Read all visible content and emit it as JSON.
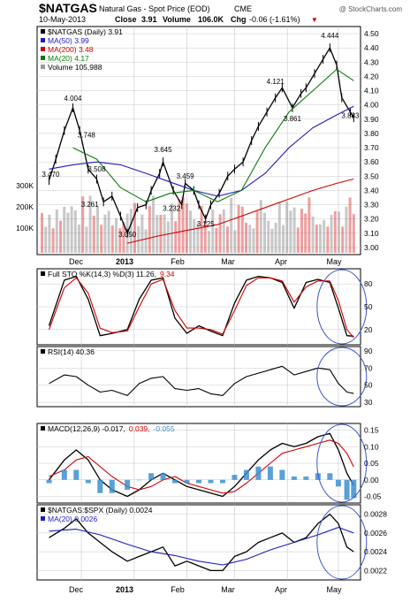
{
  "header": {
    "symbol": "$NATGAS",
    "name": "Natural Gas - Spot Price (EOD)",
    "exchange": "CME",
    "date": "10-May-2013",
    "close_label": "Close",
    "close": "3.91",
    "volume_label": "Volume",
    "volume": "106.0K",
    "chg_label": "Chg",
    "chg": "-0.06 (-1.61%)",
    "chg_arrow": "▼",
    "copyright": "@ StockCharts.com"
  },
  "colors": {
    "price": "#000000",
    "ma50": "#1c1cb8",
    "ma200": "#d00000",
    "ma20": "#0a7a0a",
    "volume": "#9a9a9a",
    "volume_red": "#e05050",
    "sto_k": "#000000",
    "sto_d": "#d00000",
    "rsi_fill": "#4a7f4a",
    "macd_hist": "#3b8fd0",
    "circle": "#3a56c8",
    "grid": "#c8c8c8",
    "chg_red": "#c00000"
  },
  "x_labels": [
    "Dec",
    "2013",
    "Feb",
    "Mar",
    "Apr",
    "May"
  ],
  "chart_data": [
    {
      "type": "line",
      "panel": "price",
      "title": "$NATGAS (Daily) 3.91",
      "legend": [
        {
          "label": "$NATGAS (Daily)",
          "value": "3.91",
          "color": "#000000"
        },
        {
          "label": "MA(50)",
          "value": "3.99",
          "color": "#1c1cb8"
        },
        {
          "label": "MA(200)",
          "value": "3.48",
          "color": "#d00000"
        },
        {
          "label": "MA(20)",
          "value": "4.17",
          "color": "#0a7a0a"
        },
        {
          "label": "Volume",
          "value": "105,988",
          "color": "#9a9a9a"
        }
      ],
      "ylim": [
        2.95,
        4.55
      ],
      "y_ticks": [
        "4.50",
        "4.40",
        "4.30",
        "4.20",
        "4.10",
        "4.00",
        "3.90",
        "3.80",
        "3.70",
        "3.60",
        "3.50",
        "3.40",
        "3.30",
        "3.20",
        "3.10",
        "3.00"
      ],
      "volume_ticks": [
        "300K",
        "200K",
        "100K"
      ],
      "annotations": [
        {
          "text": "4.004",
          "x": "2012-11-26",
          "y": 4.004
        },
        {
          "text": "3.748",
          "x": "2012-12-04",
          "y": 3.748
        },
        {
          "text": "3.470",
          "x": "2012-11-13",
          "y": 3.47
        },
        {
          "text": "3.508",
          "x": "2012-12-10",
          "y": 3.508
        },
        {
          "text": "3.261",
          "x": "2012-12-06",
          "y": 3.261
        },
        {
          "text": "3.050",
          "x": "2012-12-28",
          "y": 3.05
        },
        {
          "text": "3.645",
          "x": "2013-01-18",
          "y": 3.645
        },
        {
          "text": "3.459",
          "x": "2013-01-31",
          "y": 3.459
        },
        {
          "text": "3.232",
          "x": "2013-01-23",
          "y": 3.232
        },
        {
          "text": "3.125",
          "x": "2013-02-12",
          "y": 3.125
        },
        {
          "text": "4.121",
          "x": "2013-03-25",
          "y": 4.121
        },
        {
          "text": "3.861",
          "x": "2013-04-04",
          "y": 3.861
        },
        {
          "text": "4.444",
          "x": "2013-04-26",
          "y": 4.444
        },
        {
          "text": "3.883",
          "x": "2013-05-08",
          "y": 3.883
        }
      ],
      "series": [
        {
          "name": "$NATGAS (Daily)",
          "x": [
            "2012-11-12",
            "2012-11-16",
            "2012-11-21",
            "2012-11-26",
            "2012-11-30",
            "2012-12-05",
            "2012-12-10",
            "2012-12-14",
            "2012-12-19",
            "2012-12-24",
            "2012-12-28",
            "2013-01-03",
            "2013-01-08",
            "2013-01-11",
            "2013-01-16",
            "2013-01-18",
            "2013-01-24",
            "2013-01-29",
            "2013-01-31",
            "2013-02-05",
            "2013-02-08",
            "2013-02-12",
            "2013-02-15",
            "2013-02-20",
            "2013-02-25",
            "2013-03-01",
            "2013-03-06",
            "2013-03-11",
            "2013-03-15",
            "2013-03-20",
            "2013-03-25",
            "2013-03-29",
            "2013-04-04",
            "2013-04-09",
            "2013-04-12",
            "2013-04-17",
            "2013-04-22",
            "2013-04-26",
            "2013-04-30",
            "2013-05-03",
            "2013-05-08",
            "2013-05-10"
          ],
          "values": [
            3.47,
            3.62,
            3.82,
            3.98,
            3.82,
            3.55,
            3.48,
            3.32,
            3.36,
            3.22,
            3.1,
            3.28,
            3.3,
            3.4,
            3.52,
            3.6,
            3.4,
            3.3,
            3.45,
            3.4,
            3.3,
            3.2,
            3.3,
            3.38,
            3.5,
            3.55,
            3.6,
            3.75,
            3.85,
            3.95,
            4.05,
            4.12,
            3.98,
            4.08,
            4.12,
            4.22,
            4.32,
            4.4,
            4.28,
            4.05,
            3.95,
            3.91
          ]
        },
        {
          "name": "MA(50)",
          "x": [
            "2012-11-12",
            "2012-11-26",
            "2012-12-10",
            "2012-12-24",
            "2013-01-08",
            "2013-01-22",
            "2013-02-05",
            "2013-02-19",
            "2013-03-05",
            "2013-03-19",
            "2013-04-02",
            "2013-04-16",
            "2013-04-30",
            "2013-05-10"
          ],
          "values": [
            3.55,
            3.58,
            3.6,
            3.58,
            3.52,
            3.46,
            3.4,
            3.36,
            3.4,
            3.52,
            3.7,
            3.84,
            3.93,
            3.99
          ]
        },
        {
          "name": "MA(200)",
          "x": [
            "2012-12-28",
            "2013-01-15",
            "2013-02-01",
            "2013-02-19",
            "2013-03-05",
            "2013-03-19",
            "2013-04-02",
            "2013-04-16",
            "2013-04-30",
            "2013-05-10"
          ],
          "values": [
            3.03,
            3.08,
            3.12,
            3.16,
            3.22,
            3.28,
            3.34,
            3.4,
            3.45,
            3.48
          ]
        },
        {
          "name": "MA(20)",
          "x": [
            "2012-11-26",
            "2012-12-10",
            "2012-12-24",
            "2013-01-08",
            "2013-01-22",
            "2013-02-05",
            "2013-02-19",
            "2013-03-05",
            "2013-03-19",
            "2013-04-02",
            "2013-04-16",
            "2013-04-30",
            "2013-05-10"
          ],
          "values": [
            3.7,
            3.62,
            3.42,
            3.32,
            3.38,
            3.4,
            3.32,
            3.4,
            3.7,
            3.95,
            4.1,
            4.25,
            4.17
          ]
        }
      ]
    },
    {
      "type": "line",
      "panel": "stochastic",
      "title": "Full STO %K(14,3) %D(3) 11.26, 9.34",
      "legend": [
        {
          "label": "Full STO %K(14,3) %D(3)",
          "value": "11.26,",
          "color": "#000000"
        },
        {
          "label": "",
          "value": "9.34",
          "color": "#d00000"
        }
      ],
      "ylim": [
        0,
        100
      ],
      "y_ticks": [
        "80",
        "50",
        "20"
      ],
      "series": [
        {
          "name": "%K",
          "x": [
            "2012-11-12",
            "2012-11-21",
            "2012-11-28",
            "2012-12-05",
            "2012-12-12",
            "2012-12-19",
            "2012-12-28",
            "2013-01-04",
            "2013-01-11",
            "2013-01-18",
            "2013-01-25",
            "2013-02-01",
            "2013-02-08",
            "2013-02-15",
            "2013-02-22",
            "2013-03-01",
            "2013-03-08",
            "2013-03-15",
            "2013-03-22",
            "2013-03-29",
            "2013-04-05",
            "2013-04-12",
            "2013-04-19",
            "2013-04-26",
            "2013-05-01",
            "2013-05-06",
            "2013-05-10"
          ],
          "values": [
            25,
            85,
            90,
            60,
            12,
            15,
            20,
            60,
            85,
            88,
            35,
            15,
            25,
            18,
            12,
            55,
            85,
            90,
            88,
            82,
            48,
            82,
            86,
            82,
            48,
            12,
            11.26
          ]
        },
        {
          "name": "%D",
          "x": [
            "2012-11-12",
            "2012-11-21",
            "2012-11-28",
            "2012-12-05",
            "2012-12-12",
            "2012-12-19",
            "2012-12-28",
            "2013-01-04",
            "2013-01-11",
            "2013-01-18",
            "2013-01-25",
            "2013-02-01",
            "2013-02-08",
            "2013-02-15",
            "2013-02-22",
            "2013-03-01",
            "2013-03-08",
            "2013-03-15",
            "2013-03-22",
            "2013-03-29",
            "2013-04-05",
            "2013-04-12",
            "2013-04-19",
            "2013-04-26",
            "2013-05-01",
            "2013-05-06",
            "2013-05-10"
          ],
          "values": [
            20,
            75,
            88,
            68,
            22,
            16,
            18,
            50,
            80,
            86,
            45,
            22,
            22,
            20,
            14,
            45,
            78,
            88,
            88,
            84,
            56,
            76,
            84,
            84,
            58,
            20,
            9.34
          ]
        }
      ]
    },
    {
      "type": "line",
      "panel": "rsi",
      "title": "RSI(14) 40.36",
      "legend": [
        {
          "label": "RSI(14)",
          "value": "40.36",
          "color": "#000000"
        }
      ],
      "ylim": [
        25,
        95
      ],
      "y_ticks": [
        "90",
        "70",
        "50",
        "30"
      ],
      "series": [
        {
          "name": "RSI(14)",
          "x": [
            "2012-11-12",
            "2012-11-21",
            "2012-11-28",
            "2012-12-05",
            "2012-12-12",
            "2012-12-19",
            "2012-12-28",
            "2013-01-04",
            "2013-01-11",
            "2013-01-18",
            "2013-01-25",
            "2013-02-01",
            "2013-02-08",
            "2013-02-15",
            "2013-02-22",
            "2013-03-01",
            "2013-03-08",
            "2013-03-15",
            "2013-03-22",
            "2013-03-29",
            "2013-04-05",
            "2013-04-12",
            "2013-04-19",
            "2013-04-26",
            "2013-05-01",
            "2013-05-06",
            "2013-05-10"
          ],
          "values": [
            52,
            62,
            60,
            50,
            42,
            44,
            38,
            52,
            58,
            60,
            46,
            44,
            46,
            40,
            38,
            52,
            60,
            64,
            68,
            72,
            62,
            66,
            70,
            68,
            52,
            42,
            40.36
          ]
        }
      ]
    },
    {
      "type": "line",
      "panel": "macd",
      "title": "MACD(12,26,9) -0.017, 0.039, -0.055",
      "legend": [
        {
          "label": "MACD(12,26,9)",
          "value": "-0.017,",
          "color": "#000000"
        },
        {
          "label": "",
          "value": "0.039,",
          "color": "#d00000"
        },
        {
          "label": "",
          "value": "-0.055",
          "color": "#3b8fd0"
        }
      ],
      "ylim": [
        -0.07,
        0.17
      ],
      "y_ticks": [
        "0.15",
        "0.10",
        "0.05",
        "0.00",
        "-0.05"
      ],
      "series": [
        {
          "name": "MACD",
          "x": [
            "2012-11-12",
            "2012-11-21",
            "2012-11-28",
            "2012-12-05",
            "2012-12-12",
            "2012-12-19",
            "2012-12-28",
            "2013-01-04",
            "2013-01-11",
            "2013-01-18",
            "2013-01-25",
            "2013-02-01",
            "2013-02-08",
            "2013-02-15",
            "2013-02-22",
            "2013-03-01",
            "2013-03-08",
            "2013-03-15",
            "2013-03-22",
            "2013-03-29",
            "2013-04-05",
            "2013-04-12",
            "2013-04-19",
            "2013-04-26",
            "2013-05-01",
            "2013-05-06",
            "2013-05-10"
          ],
          "values": [
            0.0,
            0.06,
            0.09,
            0.06,
            0.0,
            -0.03,
            -0.05,
            -0.03,
            0.0,
            0.02,
            0.0,
            -0.02,
            -0.03,
            -0.04,
            -0.05,
            -0.02,
            0.02,
            0.06,
            0.09,
            0.11,
            0.1,
            0.11,
            0.13,
            0.14,
            0.09,
            0.02,
            -0.017
          ]
        },
        {
          "name": "Signal",
          "x": [
            "2012-11-12",
            "2012-11-21",
            "2012-11-28",
            "2012-12-05",
            "2012-12-12",
            "2012-12-19",
            "2012-12-28",
            "2013-01-04",
            "2013-01-11",
            "2013-01-18",
            "2013-01-25",
            "2013-02-01",
            "2013-02-08",
            "2013-02-15",
            "2013-02-22",
            "2013-03-01",
            "2013-03-08",
            "2013-03-15",
            "2013-03-22",
            "2013-03-29",
            "2013-04-05",
            "2013-04-12",
            "2013-04-19",
            "2013-04-26",
            "2013-05-01",
            "2013-05-06",
            "2013-05-10"
          ],
          "values": [
            0.01,
            0.03,
            0.06,
            0.07,
            0.04,
            0.01,
            -0.02,
            -0.03,
            -0.02,
            0.0,
            0.01,
            -0.01,
            -0.02,
            -0.03,
            -0.04,
            -0.035,
            -0.01,
            0.02,
            0.05,
            0.08,
            0.09,
            0.1,
            0.11,
            0.12,
            0.11,
            0.08,
            0.039
          ]
        },
        {
          "name": "Histogram",
          "x": [
            "2012-11-12",
            "2012-11-21",
            "2012-11-28",
            "2012-12-05",
            "2012-12-12",
            "2012-12-19",
            "2012-12-28",
            "2013-01-04",
            "2013-01-11",
            "2013-01-18",
            "2013-01-25",
            "2013-02-01",
            "2013-02-08",
            "2013-02-15",
            "2013-02-22",
            "2013-03-01",
            "2013-03-08",
            "2013-03-15",
            "2013-03-22",
            "2013-03-29",
            "2013-04-05",
            "2013-04-12",
            "2013-04-19",
            "2013-04-26",
            "2013-05-01",
            "2013-05-06",
            "2013-05-10"
          ],
          "values": [
            -0.01,
            0.03,
            0.03,
            -0.01,
            -0.04,
            -0.04,
            -0.03,
            0.0,
            0.02,
            0.02,
            -0.01,
            -0.01,
            -0.01,
            -0.01,
            -0.01,
            0.015,
            0.03,
            0.04,
            0.04,
            0.03,
            0.01,
            0.01,
            0.02,
            0.02,
            -0.02,
            -0.06,
            -0.055
          ]
        }
      ]
    },
    {
      "type": "line",
      "panel": "ratio",
      "title": "$NATGAS:$SPX (Daily) 0.0024",
      "legend": [
        {
          "label": "$NATGAS:$SPX (Daily)",
          "value": "0.0024",
          "color": "#000000"
        },
        {
          "label": "MA(20)",
          "value": "0.0026",
          "color": "#1c1cb8"
        }
      ],
      "ylim": [
        0.0021,
        0.0029
      ],
      "y_ticks": [
        "0.0028",
        "0.0026",
        "0.0024",
        "0.0022"
      ],
      "series": [
        {
          "name": "$NATGAS:$SPX (Daily)",
          "x": [
            "2012-11-12",
            "2012-11-21",
            "2012-11-28",
            "2012-12-05",
            "2012-12-12",
            "2012-12-19",
            "2012-12-28",
            "2013-01-04",
            "2013-01-11",
            "2013-01-18",
            "2013-01-25",
            "2013-02-01",
            "2013-02-08",
            "2013-02-15",
            "2013-02-22",
            "2013-03-01",
            "2013-03-08",
            "2013-03-15",
            "2013-03-22",
            "2013-03-29",
            "2013-04-05",
            "2013-04-12",
            "2013-04-19",
            "2013-04-26",
            "2013-05-01",
            "2013-05-06",
            "2013-05-10"
          ],
          "values": [
            0.00255,
            0.00265,
            0.00275,
            0.0026,
            0.0025,
            0.0024,
            0.0023,
            0.00235,
            0.0024,
            0.00245,
            0.00225,
            0.0023,
            0.00225,
            0.0022,
            0.0022,
            0.00235,
            0.0024,
            0.0025,
            0.00255,
            0.0026,
            0.0025,
            0.00255,
            0.0027,
            0.0028,
            0.0027,
            0.00245,
            0.0024
          ]
        },
        {
          "name": "MA(20)",
          "x": [
            "2012-11-12",
            "2012-11-28",
            "2012-12-12",
            "2012-12-28",
            "2013-01-11",
            "2013-01-25",
            "2013-02-08",
            "2013-02-22",
            "2013-03-08",
            "2013-03-22",
            "2013-04-05",
            "2013-04-19",
            "2013-05-01",
            "2013-05-10"
          ],
          "values": [
            0.00262,
            0.00264,
            0.00258,
            0.00248,
            0.0024,
            0.00236,
            0.0023,
            0.00226,
            0.00232,
            0.00242,
            0.0025,
            0.00258,
            0.00266,
            0.0026
          ]
        }
      ]
    }
  ]
}
